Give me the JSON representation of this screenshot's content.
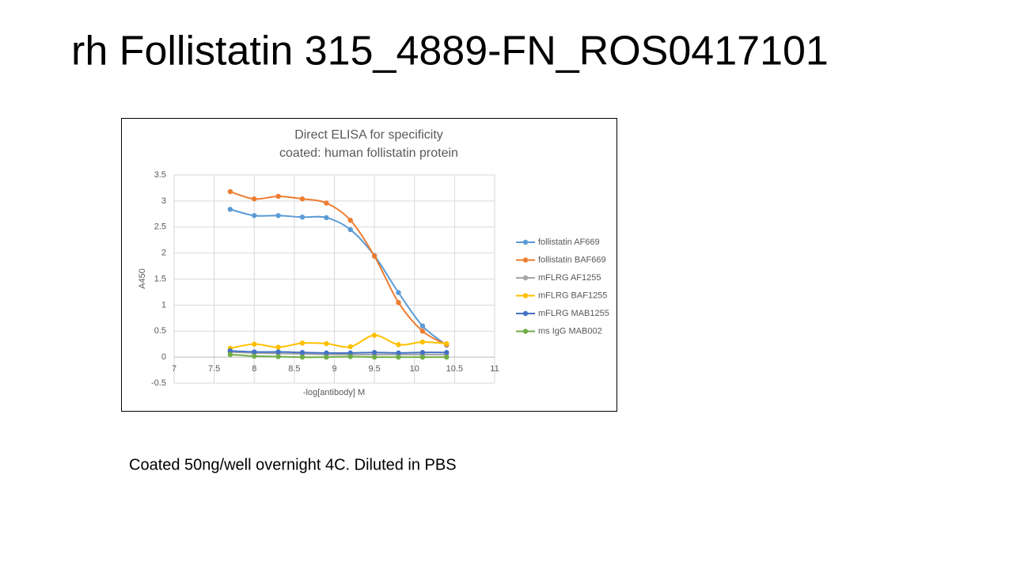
{
  "slide_title": "rh Follistatin 315_4889-FN_ROS0417101",
  "note": "Coated 50ng/well overnight 4C. Diluted in PBS",
  "chart_data": {
    "type": "line",
    "title": "Direct ELISA for specificity",
    "subtitle": "coated: human follistatin protein",
    "x_label": "-log[antibody] M",
    "y_label": "A450",
    "x": [
      7.7,
      8,
      8.3,
      8.6,
      8.9,
      9.2,
      9.5,
      9.8,
      10.1,
      10.4
    ],
    "series": [
      {
        "name": "follistatin AF669",
        "color": "#5b9bd5",
        "values": [
          2.84,
          2.72,
          2.72,
          2.69,
          2.68,
          2.45,
          1.95,
          1.24,
          0.6,
          0.23
        ]
      },
      {
        "name": "follistatin BAF669",
        "color": "#ed7d31",
        "values": [
          3.18,
          3.04,
          3.09,
          3.04,
          2.96,
          2.63,
          1.94,
          1.05,
          0.5,
          0.24
        ]
      },
      {
        "name": "mFLRG AF1255",
        "color": "#a5a5a5",
        "values": [
          0.1,
          0.08,
          0.07,
          0.06,
          0.05,
          0.05,
          0.05,
          0.05,
          0.05,
          0.05
        ]
      },
      {
        "name": "mFLRG BAF1255",
        "color": "#ffc000",
        "values": [
          0.17,
          0.25,
          0.19,
          0.27,
          0.26,
          0.2,
          0.42,
          0.24,
          0.29,
          0.26
        ]
      },
      {
        "name": "mFLRG MAB1255",
        "color": "#4472c4",
        "values": [
          0.12,
          0.1,
          0.1,
          0.09,
          0.08,
          0.08,
          0.09,
          0.08,
          0.09,
          0.09
        ]
      },
      {
        "name": "ms IgG MAB002",
        "color": "#70ad47",
        "values": [
          0.05,
          0.02,
          0.01,
          0,
          0,
          0.01,
          0,
          0,
          0,
          0
        ]
      }
    ],
    "xlim": [
      7,
      11
    ],
    "xticks": [
      7,
      7.5,
      8,
      8.5,
      9,
      9.5,
      10,
      10.5,
      11
    ],
    "ylim": [
      -0.5,
      3.5
    ],
    "yticks": [
      -0.5,
      0,
      0.5,
      1,
      1.5,
      2,
      2.5,
      3,
      3.5
    ],
    "grid": true,
    "legend": "right"
  }
}
